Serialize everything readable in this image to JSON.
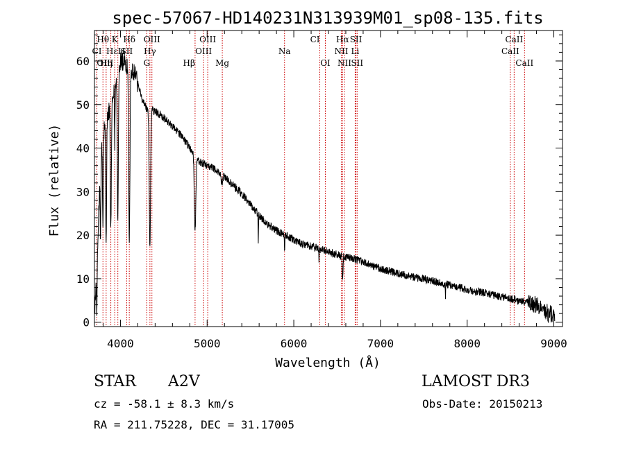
{
  "chart_data": {
    "type": "line",
    "title": "spec-57067-HD140231N313939M01_sp08-135.fits",
    "xlabel": "Wavelength (Å)",
    "ylabel": "Flux (relative)",
    "xlim": [
      3700,
      9100
    ],
    "ylim": [
      -1,
      67
    ],
    "xticks": [
      4000,
      5000,
      6000,
      7000,
      8000,
      9000
    ],
    "yticks": [
      0,
      10,
      20,
      30,
      40,
      50,
      60
    ],
    "grid": false,
    "line_color": "#000000",
    "marker_color": "#cc0000",
    "spectral_lines": [
      {
        "name": "Hθ",
        "wavelength": 3798,
        "row": 0,
        "align": "middle"
      },
      {
        "name": "K",
        "wavelength": 3934,
        "row": 0,
        "align": "middle"
      },
      {
        "name": "Hδ",
        "wavelength": 4102,
        "row": 0,
        "align": "middle"
      },
      {
        "name": "OIII",
        "wavelength": 4363,
        "row": 0,
        "align": "middle"
      },
      {
        "name": "OIII",
        "wavelength": 5007,
        "row": 0,
        "align": "middle"
      },
      {
        "name": "CI",
        "wavelength": 6300,
        "row": 0,
        "align": "end"
      },
      {
        "name": "Hα",
        "wavelength": 6563,
        "row": 0,
        "align": "middle"
      },
      {
        "name": "SII",
        "wavelength": 6717,
        "row": 0,
        "align": "middle"
      },
      {
        "name": "CaII",
        "wavelength": 8542,
        "row": 0,
        "align": "middle"
      },
      {
        "name": "CI",
        "wavelength": 3728,
        "row": 1,
        "align": "middle"
      },
      {
        "name": "Hε",
        "wavelength": 3970,
        "row": 1,
        "align": "end"
      },
      {
        "name": "H",
        "wavelength": 3970,
        "row": 1,
        "align": "start"
      },
      {
        "name": "SII",
        "wavelength": 4072,
        "row": 1,
        "align": "middle"
      },
      {
        "name": "Hγ",
        "wavelength": 4340,
        "row": 1,
        "align": "middle"
      },
      {
        "name": "OIII",
        "wavelength": 4959,
        "row": 1,
        "align": "middle"
      },
      {
        "name": "Na",
        "wavelength": 5893,
        "row": 1,
        "align": "middle"
      },
      {
        "name": "NII",
        "wavelength": 6548,
        "row": 1,
        "align": "middle"
      },
      {
        "name": "Li",
        "wavelength": 6708,
        "row": 1,
        "align": "middle"
      },
      {
        "name": "CaII",
        "wavelength": 8498,
        "row": 1,
        "align": "middle"
      },
      {
        "name": "OIII",
        "wavelength": 3727,
        "row": 2,
        "align": "start"
      },
      {
        "name": "Hη",
        "wavelength": 3835,
        "row": 2,
        "align": "middle"
      },
      {
        "name": "G",
        "wavelength": 4304,
        "row": 2,
        "align": "middle"
      },
      {
        "name": "Hβ",
        "wavelength": 4861,
        "row": 2,
        "align": "end"
      },
      {
        "name": "Mg",
        "wavelength": 5175,
        "row": 2,
        "align": "middle"
      },
      {
        "name": "OI",
        "wavelength": 6364,
        "row": 2,
        "align": "middle"
      },
      {
        "name": "NII",
        "wavelength": 6584,
        "row": 2,
        "align": "middle"
      },
      {
        "name": "SII",
        "wavelength": 6731,
        "row": 2,
        "align": "middle"
      },
      {
        "name": "CaII",
        "wavelength": 8662,
        "row": 2,
        "align": "middle"
      }
    ],
    "marker_wavelengths": [
      3728,
      3798,
      3835,
      3889,
      3934,
      3970,
      4072,
      4102,
      4304,
      4340,
      4363,
      4861,
      4959,
      5007,
      5175,
      5893,
      6300,
      6364,
      6548,
      6563,
      6584,
      6708,
      6717,
      6731,
      8498,
      8542,
      8662
    ],
    "continuum": [
      [
        3700,
        2
      ],
      [
        3730,
        12
      ],
      [
        3760,
        33
      ],
      [
        3800,
        43
      ],
      [
        3850,
        47
      ],
      [
        3900,
        52
      ],
      [
        3950,
        56
      ],
      [
        4000,
        60
      ],
      [
        4050,
        60
      ],
      [
        4100,
        58
      ],
      [
        4150,
        58
      ],
      [
        4200,
        55
      ],
      [
        4250,
        51
      ],
      [
        4300,
        49
      ],
      [
        4400,
        48.5
      ],
      [
        4500,
        47
      ],
      [
        4600,
        45
      ],
      [
        4700,
        43
      ],
      [
        4800,
        40
      ],
      [
        4900,
        37
      ],
      [
        5000,
        36
      ],
      [
        5100,
        35
      ],
      [
        5200,
        33.5
      ],
      [
        5300,
        31.5
      ],
      [
        5400,
        29.5
      ],
      [
        5500,
        27
      ],
      [
        5600,
        24.5
      ],
      [
        5700,
        22.5
      ],
      [
        5800,
        21
      ],
      [
        5900,
        20
      ],
      [
        6000,
        19
      ],
      [
        6100,
        18
      ],
      [
        6200,
        17.5
      ],
      [
        6300,
        16.8
      ],
      [
        6400,
        16.2
      ],
      [
        6500,
        15.5
      ],
      [
        6600,
        15
      ],
      [
        6700,
        14.5
      ],
      [
        6800,
        14
      ],
      [
        6900,
        13
      ],
      [
        7000,
        12.3
      ],
      [
        7200,
        11.2
      ],
      [
        7400,
        10.3
      ],
      [
        7600,
        9.5
      ],
      [
        7800,
        8.5
      ],
      [
        8000,
        7.5
      ],
      [
        8200,
        6.7
      ],
      [
        8400,
        5.8
      ],
      [
        8600,
        5
      ],
      [
        8800,
        4
      ],
      [
        8900,
        2.5
      ],
      [
        9000,
        1.5
      ]
    ],
    "absorption_features": [
      {
        "center": 3728,
        "depth": 10,
        "width": 4
      },
      {
        "center": 3770,
        "depth": 18,
        "width": 5
      },
      {
        "center": 3798,
        "depth": 22,
        "width": 6
      },
      {
        "center": 3835,
        "depth": 26,
        "width": 7
      },
      {
        "center": 3889,
        "depth": 30,
        "width": 8
      },
      {
        "center": 3934,
        "depth": 14,
        "width": 5
      },
      {
        "center": 3970,
        "depth": 34,
        "width": 9
      },
      {
        "center": 4102,
        "depth": 40,
        "width": 10
      },
      {
        "center": 4340,
        "depth": 32,
        "width": 11
      },
      {
        "center": 4861,
        "depth": 17,
        "width": 12
      },
      {
        "center": 5170,
        "depth": 2,
        "width": 12
      },
      {
        "center": 5590,
        "depth": 7,
        "width": 3
      },
      {
        "center": 5893,
        "depth": 4,
        "width": 3
      },
      {
        "center": 6290,
        "depth": 3,
        "width": 3
      },
      {
        "center": 6563,
        "depth": 6,
        "width": 6
      },
      {
        "center": 7750,
        "depth": 3,
        "width": 3
      },
      {
        "center": 8935,
        "depth": 3,
        "width": 3
      }
    ],
    "noise_level": 0.9
  },
  "info": {
    "object_class": "STAR",
    "subclass": "A2V",
    "survey": "LAMOST DR3",
    "redshift_line": "cz = -58.1 ± 8.3 km/s",
    "obs_date_line": "Obs-Date: 20150213",
    "coords_line": "RA = 211.75228, DEC =  31.17005"
  }
}
